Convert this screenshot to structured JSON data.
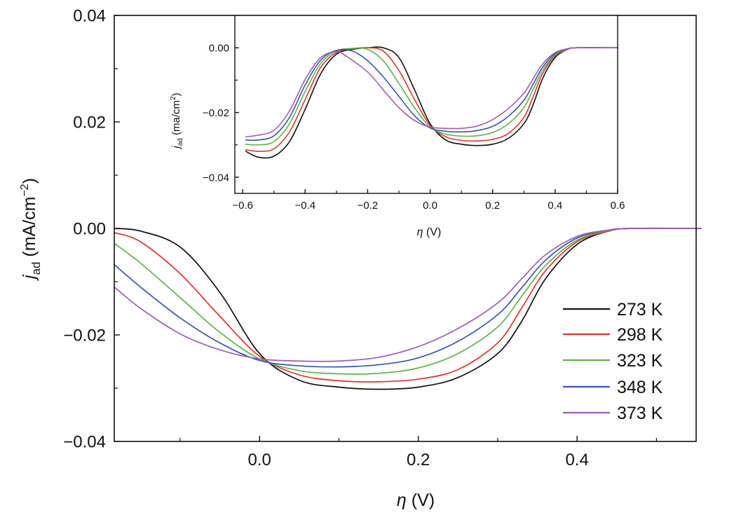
{
  "chart_data": [
    {
      "type": "line",
      "id": "main",
      "title": "",
      "xlabel": {
        "symbol": "η",
        "unit": " (V)"
      },
      "ylabel": {
        "symbol": "j",
        "sub": "ad",
        "unit": " (mA/cm",
        "sup": "−2",
        "close": ")"
      },
      "xlim": [
        -0.183,
        0.55
      ],
      "ylim": [
        -0.04,
        0.04
      ],
      "xticks": [
        {
          "v": 0.0,
          "label": "0.0"
        },
        {
          "v": 0.2,
          "label": "0.2"
        },
        {
          "v": 0.4,
          "label": "0.4"
        }
      ],
      "xminor": [
        -0.1,
        0.1,
        0.3,
        0.5
      ],
      "yticks": [
        {
          "v": 0.04,
          "label": "0.04"
        },
        {
          "v": 0.02,
          "label": "0.02"
        },
        {
          "v": 0.0,
          "label": "0.00"
        },
        {
          "v": -0.02,
          "label": "−0.02"
        },
        {
          "v": -0.04,
          "label": "−0.04"
        }
      ],
      "yminor": [
        0.03,
        0.01,
        -0.01,
        -0.03
      ],
      "legend": "bottom-right",
      "series": [
        {
          "name": "273 K",
          "color": "#111111",
          "points": [
            [
              -0.183,
              0.0
            ],
            [
              -0.15,
              -0.0005
            ],
            [
              -0.1,
              -0.0035
            ],
            [
              -0.05,
              -0.012
            ],
            [
              0.0,
              -0.0235
            ],
            [
              0.05,
              -0.0285
            ],
            [
              0.1,
              -0.0298
            ],
            [
              0.15,
              -0.0302
            ],
            [
              0.2,
              -0.0298
            ],
            [
              0.25,
              -0.028
            ],
            [
              0.3,
              -0.0235
            ],
            [
              0.33,
              -0.0175
            ],
            [
              0.36,
              -0.0095
            ],
            [
              0.4,
              -0.003
            ],
            [
              0.44,
              -0.0005
            ],
            [
              0.47,
              0.0
            ],
            [
              0.55,
              0.0
            ]
          ]
        },
        {
          "name": "298 K",
          "color": "#e8302a",
          "points": [
            [
              -0.183,
              -0.0008
            ],
            [
              -0.15,
              -0.0025
            ],
            [
              -0.1,
              -0.0085
            ],
            [
              -0.05,
              -0.0165
            ],
            [
              0.0,
              -0.024
            ],
            [
              0.05,
              -0.0275
            ],
            [
              0.1,
              -0.0286
            ],
            [
              0.15,
              -0.0288
            ],
            [
              0.2,
              -0.0283
            ],
            [
              0.25,
              -0.0265
            ],
            [
              0.3,
              -0.0215
            ],
            [
              0.33,
              -0.015
            ],
            [
              0.36,
              -0.008
            ],
            [
              0.4,
              -0.0025
            ],
            [
              0.44,
              -0.0005
            ],
            [
              0.47,
              0.0
            ],
            [
              0.55,
              0.0
            ]
          ]
        },
        {
          "name": "323 K",
          "color": "#5ab840",
          "points": [
            [
              -0.183,
              -0.0028
            ],
            [
              -0.15,
              -0.0065
            ],
            [
              -0.1,
              -0.013
            ],
            [
              -0.05,
              -0.0195
            ],
            [
              0.0,
              -0.0245
            ],
            [
              0.05,
              -0.0267
            ],
            [
              0.1,
              -0.0273
            ],
            [
              0.15,
              -0.0272
            ],
            [
              0.2,
              -0.0262
            ],
            [
              0.25,
              -0.0235
            ],
            [
              0.3,
              -0.0185
            ],
            [
              0.33,
              -0.0128
            ],
            [
              0.36,
              -0.007
            ],
            [
              0.4,
              -0.0022
            ],
            [
              0.44,
              -0.0004
            ],
            [
              0.47,
              0.0
            ],
            [
              0.55,
              0.0
            ]
          ]
        },
        {
          "name": "348 K",
          "color": "#3555b5",
          "points": [
            [
              -0.183,
              -0.0068
            ],
            [
              -0.15,
              -0.011
            ],
            [
              -0.1,
              -0.0168
            ],
            [
              -0.05,
              -0.0215
            ],
            [
              0.0,
              -0.0248
            ],
            [
              0.05,
              -0.0258
            ],
            [
              0.1,
              -0.026
            ],
            [
              0.15,
              -0.0256
            ],
            [
              0.2,
              -0.0243
            ],
            [
              0.25,
              -0.0212
            ],
            [
              0.3,
              -0.0162
            ],
            [
              0.33,
              -0.0112
            ],
            [
              0.36,
              -0.006
            ],
            [
              0.4,
              -0.0018
            ],
            [
              0.44,
              -0.0003
            ],
            [
              0.47,
              0.0
            ],
            [
              0.55,
              0.0
            ]
          ]
        },
        {
          "name": "373 K",
          "color": "#a05cb5",
          "points": [
            [
              -0.183,
              -0.011
            ],
            [
              -0.15,
              -0.015
            ],
            [
              -0.1,
              -0.0198
            ],
            [
              -0.05,
              -0.0228
            ],
            [
              0.0,
              -0.0245
            ],
            [
              0.05,
              -0.0249
            ],
            [
              0.1,
              -0.0249
            ],
            [
              0.15,
              -0.0242
            ],
            [
              0.2,
              -0.0222
            ],
            [
              0.25,
              -0.0188
            ],
            [
              0.3,
              -0.014
            ],
            [
              0.33,
              -0.0095
            ],
            [
              0.36,
              -0.005
            ],
            [
              0.4,
              -0.0015
            ],
            [
              0.44,
              -0.0003
            ],
            [
              0.47,
              0.0
            ],
            [
              0.55,
              0.0
            ]
          ]
        }
      ]
    },
    {
      "type": "line",
      "id": "inset",
      "title": "",
      "xlabel": {
        "symbol": "η",
        "unit": " (V)"
      },
      "ylabel": {
        "symbol": "j",
        "sub": "ad",
        "unit": " (ma/cm",
        "sup": "2",
        "close": ")"
      },
      "xlim": [
        -0.625,
        0.6
      ],
      "ylim": [
        -0.045,
        0.01
      ],
      "xticks": [
        {
          "v": -0.6,
          "label": "−0.6"
        },
        {
          "v": -0.4,
          "label": "−0.4"
        },
        {
          "v": -0.2,
          "label": "−0.2"
        },
        {
          "v": 0.0,
          "label": "0.0"
        },
        {
          "v": 0.2,
          "label": "0.2"
        },
        {
          "v": 0.4,
          "label": "0.4"
        },
        {
          "v": 0.6,
          "label": "0.6"
        }
      ],
      "xminor": [
        -0.5,
        -0.3,
        -0.1,
        0.1,
        0.3,
        0.5
      ],
      "yticks": [
        {
          "v": 0.0,
          "label": "0.00"
        },
        {
          "v": -0.02,
          "label": "−0.02"
        },
        {
          "v": -0.04,
          "label": "−0.04"
        }
      ],
      "yminor": [
        -0.01,
        -0.03
      ],
      "series": [
        {
          "name": "273 K",
          "color": "#111111",
          "points": [
            [
              -0.59,
              -0.032
            ],
            [
              -0.55,
              -0.0338
            ],
            [
              -0.5,
              -0.0335
            ],
            [
              -0.45,
              -0.029
            ],
            [
              -0.4,
              -0.019
            ],
            [
              -0.35,
              -0.008
            ],
            [
              -0.3,
              -0.002
            ],
            [
              -0.25,
              -0.0005
            ],
            [
              -0.2,
              0.0
            ],
            [
              -0.15,
              0.0
            ],
            [
              -0.1,
              -0.003
            ],
            [
              -0.05,
              -0.013
            ],
            [
              0.0,
              -0.0235
            ],
            [
              0.05,
              -0.0285
            ],
            [
              0.1,
              -0.0298
            ],
            [
              0.15,
              -0.0302
            ],
            [
              0.2,
              -0.0298
            ],
            [
              0.25,
              -0.028
            ],
            [
              0.3,
              -0.0235
            ],
            [
              0.33,
              -0.0175
            ],
            [
              0.36,
              -0.0095
            ],
            [
              0.4,
              -0.003
            ],
            [
              0.44,
              -0.0005
            ],
            [
              0.47,
              0.0
            ],
            [
              0.6,
              0.0
            ]
          ]
        },
        {
          "name": "298 K",
          "color": "#e8302a",
          "points": [
            [
              -0.59,
              -0.0315
            ],
            [
              -0.55,
              -0.032
            ],
            [
              -0.5,
              -0.0312
            ],
            [
              -0.45,
              -0.026
            ],
            [
              -0.4,
              -0.016
            ],
            [
              -0.35,
              -0.006
            ],
            [
              -0.3,
              -0.0015
            ],
            [
              -0.25,
              -0.0003
            ],
            [
              -0.2,
              0.0
            ],
            [
              -0.15,
              -0.001
            ],
            [
              -0.1,
              -0.007
            ],
            [
              -0.05,
              -0.016
            ],
            [
              0.0,
              -0.024
            ],
            [
              0.05,
              -0.0275
            ],
            [
              0.1,
              -0.0286
            ],
            [
              0.15,
              -0.0288
            ],
            [
              0.2,
              -0.0283
            ],
            [
              0.25,
              -0.0265
            ],
            [
              0.3,
              -0.0215
            ],
            [
              0.33,
              -0.015
            ],
            [
              0.36,
              -0.008
            ],
            [
              0.4,
              -0.0025
            ],
            [
              0.44,
              -0.0005
            ],
            [
              0.47,
              0.0
            ],
            [
              0.6,
              0.0
            ]
          ]
        },
        {
          "name": "323 K",
          "color": "#5ab840",
          "points": [
            [
              -0.59,
              -0.0298
            ],
            [
              -0.55,
              -0.03
            ],
            [
              -0.5,
              -0.029
            ],
            [
              -0.45,
              -0.0235
            ],
            [
              -0.4,
              -0.0135
            ],
            [
              -0.35,
              -0.0048
            ],
            [
              -0.3,
              -0.001
            ],
            [
              -0.25,
              -0.0002
            ],
            [
              -0.2,
              -0.0005
            ],
            [
              -0.15,
              -0.004
            ],
            [
              -0.1,
              -0.011
            ],
            [
              -0.05,
              -0.0185
            ],
            [
              0.0,
              -0.0245
            ],
            [
              0.05,
              -0.0267
            ],
            [
              0.1,
              -0.0273
            ],
            [
              0.15,
              -0.0272
            ],
            [
              0.2,
              -0.0262
            ],
            [
              0.25,
              -0.0235
            ],
            [
              0.3,
              -0.0185
            ],
            [
              0.33,
              -0.0128
            ],
            [
              0.36,
              -0.007
            ],
            [
              0.4,
              -0.0022
            ],
            [
              0.44,
              -0.0004
            ],
            [
              0.47,
              0.0
            ],
            [
              0.6,
              0.0
            ]
          ]
        },
        {
          "name": "348 K",
          "color": "#3555b5",
          "points": [
            [
              -0.59,
              -0.0285
            ],
            [
              -0.55,
              -0.0285
            ],
            [
              -0.5,
              -0.0272
            ],
            [
              -0.45,
              -0.0215
            ],
            [
              -0.4,
              -0.0115
            ],
            [
              -0.35,
              -0.0038
            ],
            [
              -0.3,
              -0.0008
            ],
            [
              -0.25,
              -0.001
            ],
            [
              -0.2,
              -0.004
            ],
            [
              -0.15,
              -0.009
            ],
            [
              -0.1,
              -0.015
            ],
            [
              -0.05,
              -0.021
            ],
            [
              0.0,
              -0.0248
            ],
            [
              0.05,
              -0.0258
            ],
            [
              0.1,
              -0.026
            ],
            [
              0.15,
              -0.0256
            ],
            [
              0.2,
              -0.0243
            ],
            [
              0.25,
              -0.0212
            ],
            [
              0.3,
              -0.0162
            ],
            [
              0.33,
              -0.0112
            ],
            [
              0.36,
              -0.006
            ],
            [
              0.4,
              -0.0018
            ],
            [
              0.44,
              -0.0003
            ],
            [
              0.47,
              0.0
            ],
            [
              0.6,
              0.0
            ]
          ]
        },
        {
          "name": "373 K",
          "color": "#a05cb5",
          "points": [
            [
              -0.59,
              -0.0275
            ],
            [
              -0.55,
              -0.027
            ],
            [
              -0.5,
              -0.0255
            ],
            [
              -0.45,
              -0.0195
            ],
            [
              -0.4,
              -0.0098
            ],
            [
              -0.35,
              -0.003
            ],
            [
              -0.3,
              -0.0012
            ],
            [
              -0.27,
              -0.0025
            ],
            [
              -0.2,
              -0.0075
            ],
            [
              -0.15,
              -0.013
            ],
            [
              -0.1,
              -0.0185
            ],
            [
              -0.05,
              -0.0225
            ],
            [
              0.0,
              -0.0245
            ],
            [
              0.05,
              -0.0249
            ],
            [
              0.1,
              -0.0249
            ],
            [
              0.15,
              -0.0242
            ],
            [
              0.2,
              -0.0222
            ],
            [
              0.25,
              -0.0188
            ],
            [
              0.3,
              -0.014
            ],
            [
              0.33,
              -0.0095
            ],
            [
              0.36,
              -0.005
            ],
            [
              0.4,
              -0.0015
            ],
            [
              0.44,
              -0.0003
            ],
            [
              0.47,
              0.0
            ],
            [
              0.6,
              0.0
            ]
          ]
        }
      ]
    }
  ]
}
